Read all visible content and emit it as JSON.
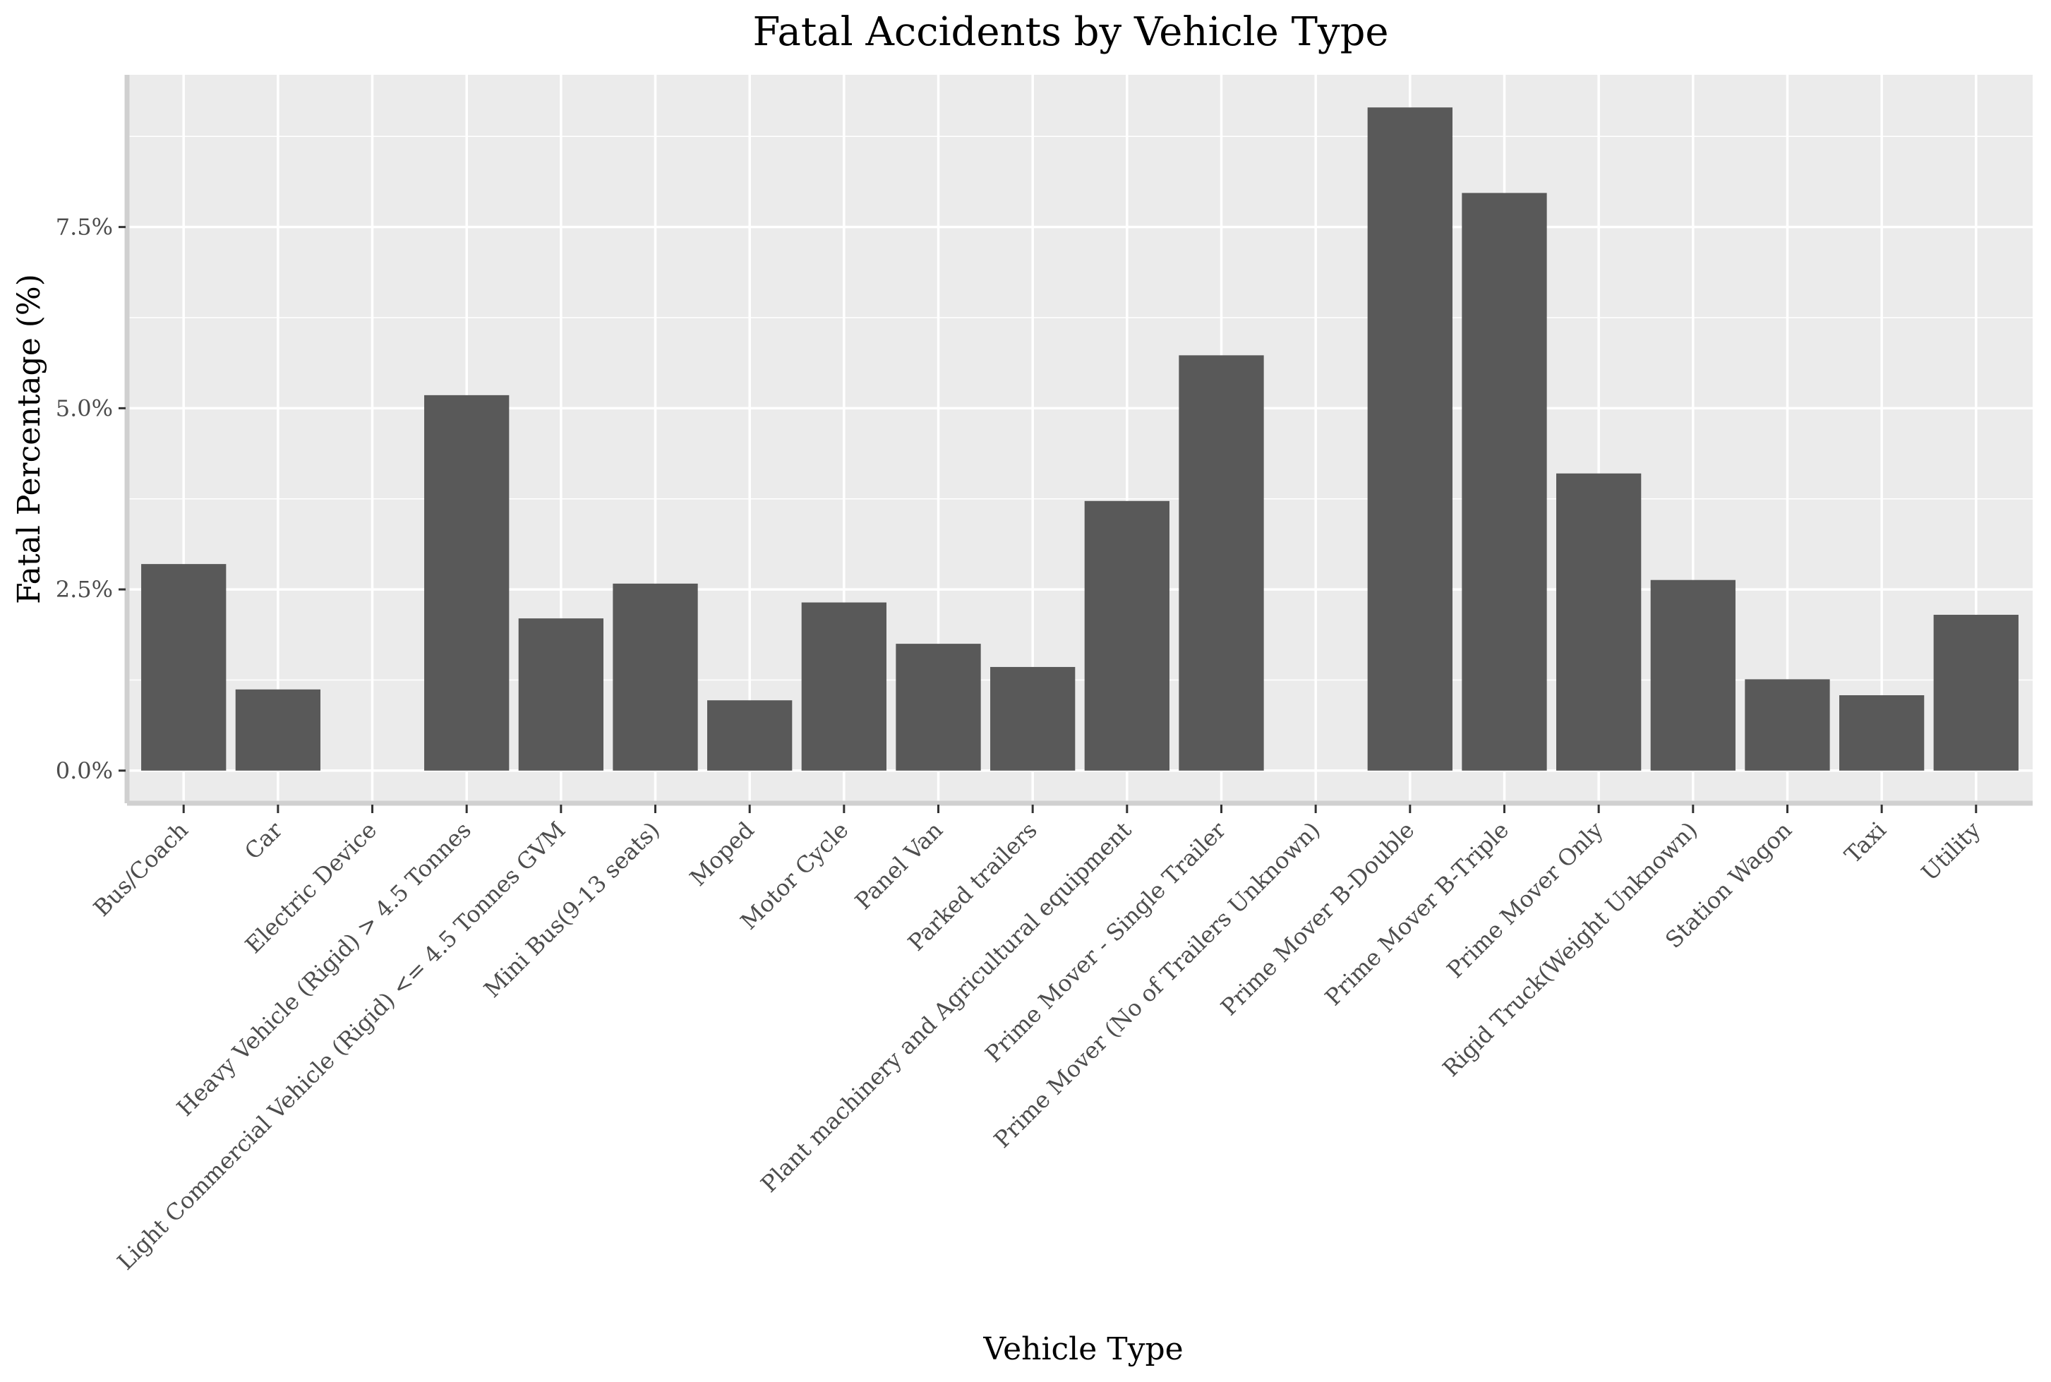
{
  "chart_data": {
    "type": "bar",
    "title": "Fatal Accidents by Vehicle Type",
    "xlabel": "Vehicle Type",
    "ylabel": "Fatal Percentage (%)",
    "ylim": [
      -0.45,
      9.6
    ],
    "y_ticks": [
      0,
      2.5,
      5,
      7.5
    ],
    "y_tick_labels": [
      "0.0%",
      "2.5%",
      "5.0%",
      "7.5%"
    ],
    "grid": true,
    "legend": "none",
    "categories": [
      "Bus/Coach",
      "Car",
      "Electric Device",
      "Heavy Vehicle (Rigid) > 4.5 Tonnes",
      "Light Commercial Vehicle (Rigid) <= 4.5 Tonnes GVM",
      "Mini Bus(9-13 seats)",
      "Moped",
      "Motor Cycle",
      "Panel Van",
      "Parked trailers",
      "Plant machinery and Agricultural equipment",
      "Prime Mover - Single Trailer",
      "Prime Mover (No of Trailers Unknown)",
      "Prime Mover B-Double",
      "Prime Mover B-Triple",
      "Prime Mover Only",
      "Rigid Truck(Weight Unknown)",
      "Station Wagon",
      "Taxi",
      "Utility"
    ],
    "values": [
      2.85,
      1.12,
      0.0,
      5.18,
      2.1,
      2.58,
      0.97,
      2.32,
      1.75,
      1.43,
      3.72,
      5.73,
      0.0,
      9.15,
      7.97,
      4.1,
      2.63,
      1.26,
      1.04,
      2.15
    ],
    "colors": {
      "bar": "#595959",
      "panel": "#ebebeb",
      "grid_major": "#ffffff",
      "axis_line": "#d0d0d0",
      "tick": "#333333"
    }
  }
}
